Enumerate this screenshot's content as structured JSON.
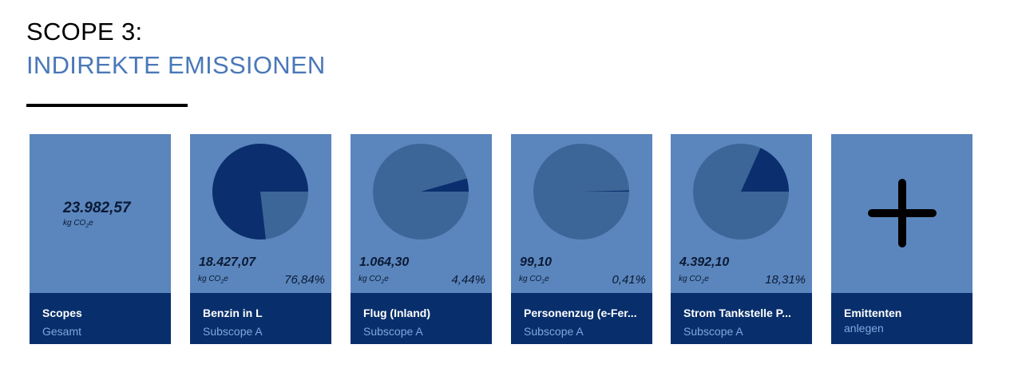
{
  "header": {
    "title_line1": "SCOPE 3:",
    "title_line2": "INDIREKTE EMISSIONEN"
  },
  "colors": {
    "card_bg": "#5b86bd",
    "card_footer": "#082f6c",
    "pie_slice": "#0b2f6e",
    "pie_rest": "#3d6698",
    "accent": "#4a78b8"
  },
  "total_card": {
    "value": "23.982,57",
    "unit_prefix": "kg CO",
    "unit_sub": "2",
    "unit_suffix": "e",
    "name": "Scopes",
    "sub": "Gesamt"
  },
  "cards": [
    {
      "name": "Benzin in L",
      "sub": "Subscope A",
      "value": "18.427,07",
      "unit_prefix": "kg CO",
      "unit_sub": "2",
      "unit_suffix": "e",
      "percent": "76,84%",
      "share": 0.7684
    },
    {
      "name": "Flug (Inland)",
      "sub": "Subscope A",
      "value": "1.064,30",
      "unit_prefix": "kg CO",
      "unit_sub": "2",
      "unit_suffix": "e",
      "percent": "4,44%",
      "share": 0.0444
    },
    {
      "name": "Personenzug (e-Fer...",
      "sub": "Subscope A",
      "value": "99,10",
      "unit_prefix": "kg CO",
      "unit_sub": "2",
      "unit_suffix": "e",
      "percent": "0,41%",
      "share": 0.0041
    },
    {
      "name": "Strom Tankstelle P...",
      "sub": "Subscope A",
      "value": "4.392,10",
      "unit_prefix": "kg CO",
      "unit_sub": "2",
      "unit_suffix": "e",
      "percent": "18,31%",
      "share": 0.1831
    }
  ],
  "add_card": {
    "icon": "plus-icon",
    "name": "Emittenten",
    "sub": "anlegen"
  }
}
